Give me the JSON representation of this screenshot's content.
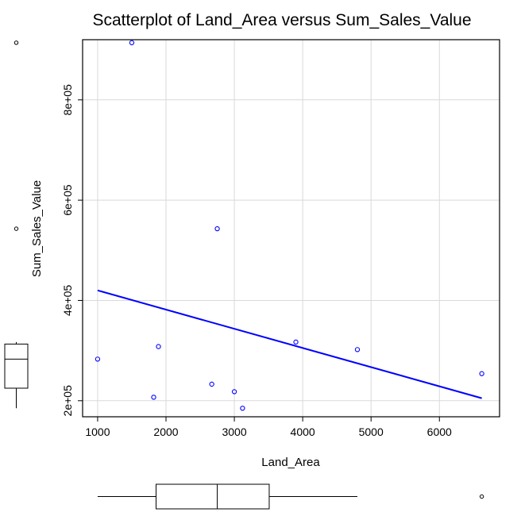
{
  "chart_data": {
    "type": "scatter",
    "title": "Scatterplot of Land_Area versus Sum_Sales_Value",
    "xlabel": "Land_Area",
    "ylabel": "Sum_Sales_Value",
    "xlim": [
      780,
      6880
    ],
    "ylim": [
      168000,
      920000
    ],
    "grid": true,
    "x_ticks": [
      1000,
      2000,
      3000,
      4000,
      5000,
      6000
    ],
    "x_tick_labels": [
      "1000",
      "2000",
      "3000",
      "4000",
      "5000",
      "6000"
    ],
    "y_ticks": [
      200000,
      400000,
      600000,
      800000
    ],
    "y_tick_labels": [
      "2e+05",
      "4e+05",
      "6e+05",
      "8e+05"
    ],
    "points": [
      {
        "x": 1000,
        "y": 283000
      },
      {
        "x": 1500,
        "y": 914000
      },
      {
        "x": 1820,
        "y": 207000
      },
      {
        "x": 1890,
        "y": 308000
      },
      {
        "x": 2670,
        "y": 233000
      },
      {
        "x": 2750,
        "y": 543000
      },
      {
        "x": 3000,
        "y": 218000
      },
      {
        "x": 3120,
        "y": 185000
      },
      {
        "x": 3900,
        "y": 317000
      },
      {
        "x": 4800,
        "y": 302000
      },
      {
        "x": 6620,
        "y": 254000
      }
    ],
    "fit_line": {
      "x1": 1000,
      "y1": 420000,
      "x2": 6620,
      "y2": 205000
    },
    "y_boxplot": {
      "q1": 225000,
      "median": 283000,
      "q3": 313000,
      "whisker_low": 185000,
      "whisker_high": 317000,
      "outliers": [
        543000,
        914000
      ]
    },
    "x_boxplot": {
      "q1": 1855,
      "median": 2750,
      "q3": 3510,
      "whisker_low": 1000,
      "whisker_high": 4800,
      "outliers": [
        6620
      ]
    },
    "colors": {
      "points": "#0000ff",
      "fit_line": "#0000ff",
      "grid": "#d9d9d9",
      "axes": "#000000",
      "box": "#000000"
    }
  }
}
